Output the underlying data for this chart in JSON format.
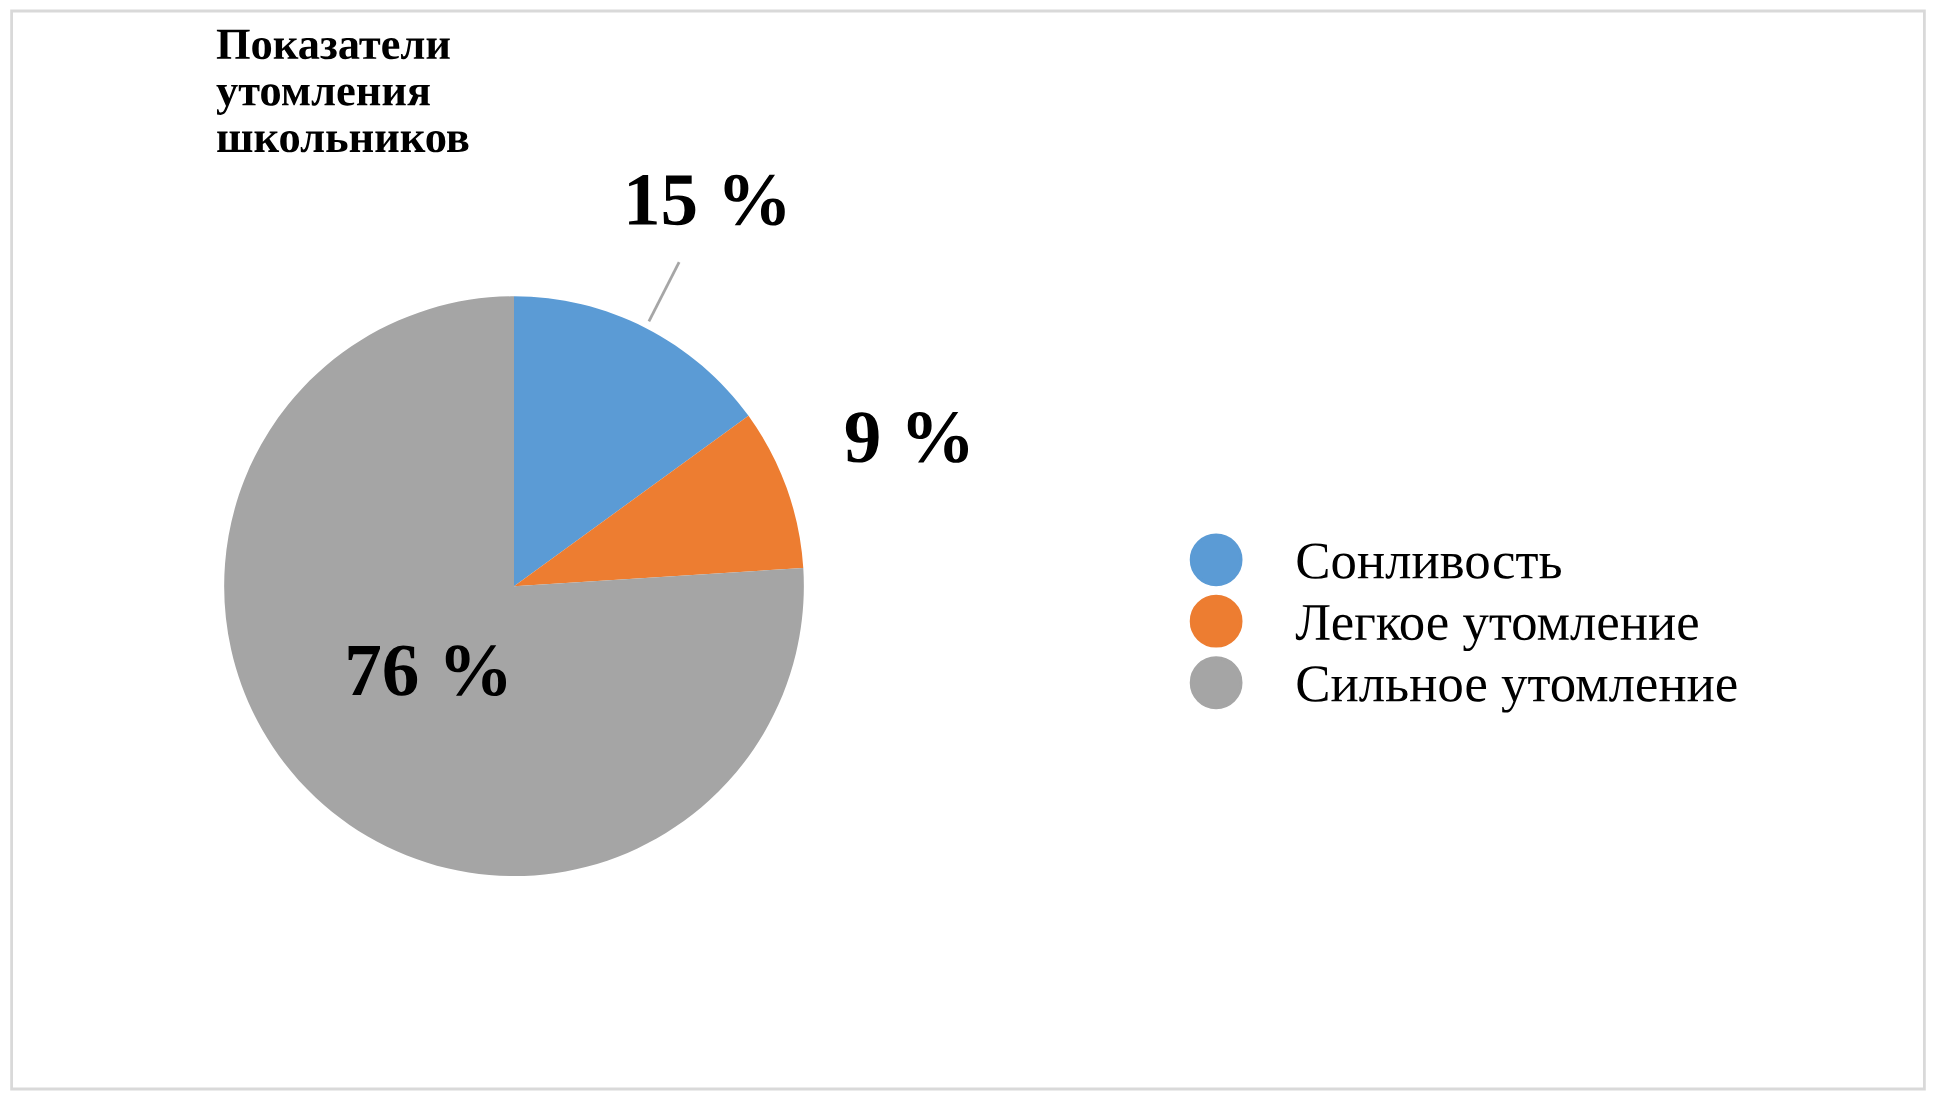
{
  "chart_data": {
    "type": "pie",
    "title": "Показатели\nутомления\nшкольников",
    "categories": [
      "Сонливость",
      "Легкое утомление",
      "Сильное утомление"
    ],
    "values": [
      15,
      9,
      76
    ],
    "colors": [
      "#5b9bd5",
      "#ed7d31",
      "#a5a5a5"
    ],
    "value_labels": [
      "15 %",
      "9 %",
      "76 %"
    ],
    "legend": "right"
  }
}
